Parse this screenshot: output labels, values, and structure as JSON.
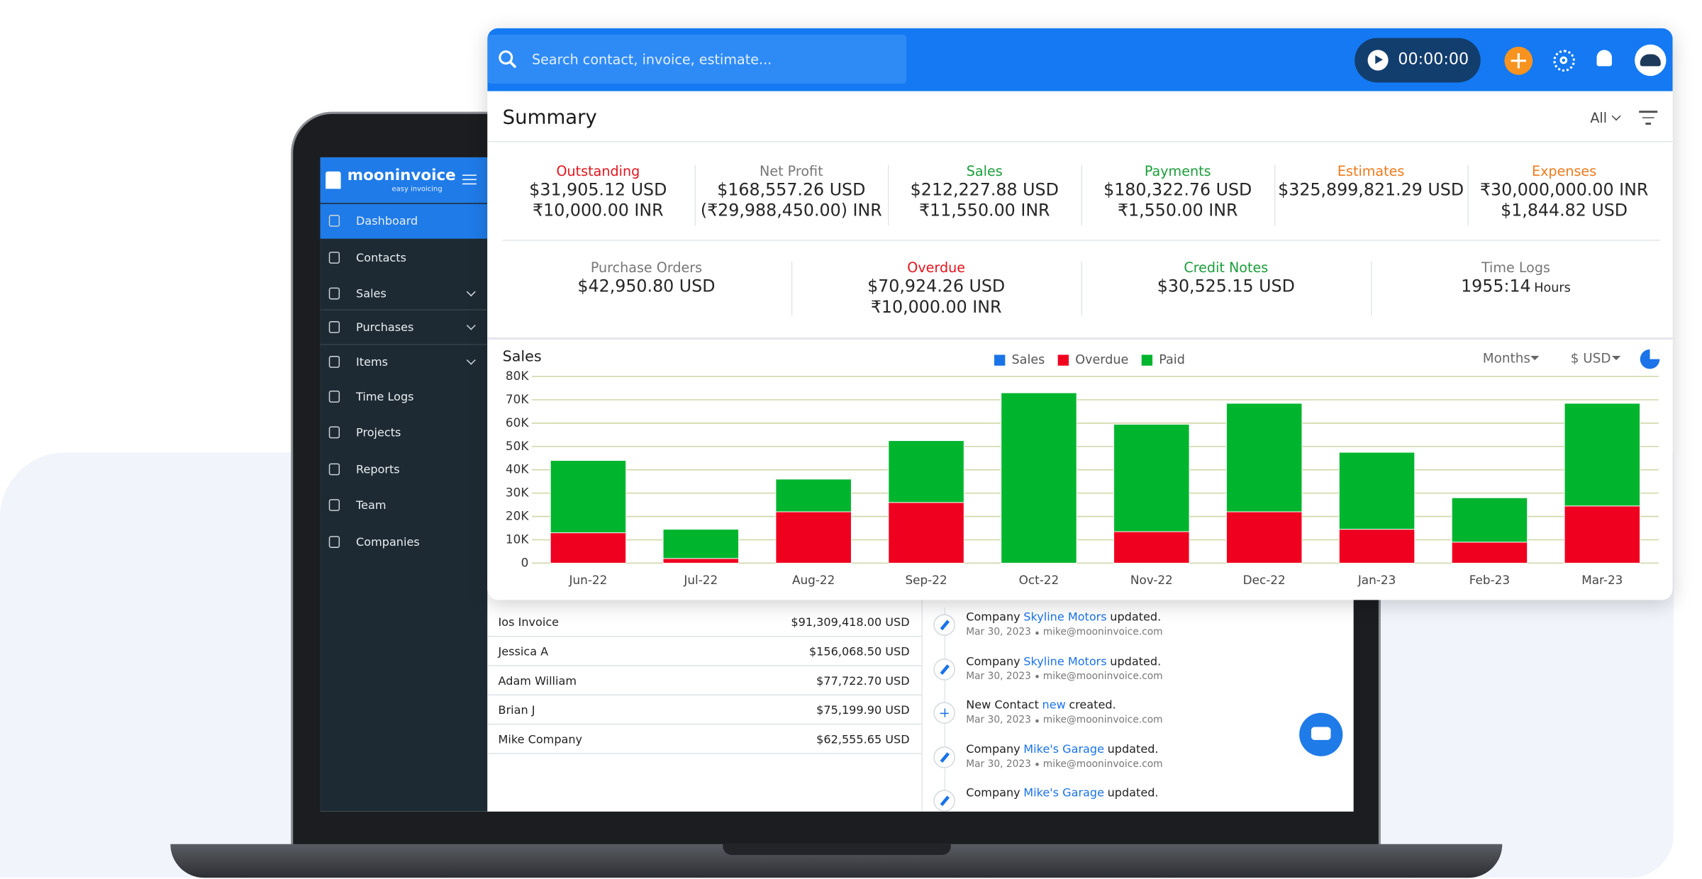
{
  "header": {
    "search_placeholder": "Search contact, invoice, estimate...",
    "timer": "00:00:00"
  },
  "sidebar": {
    "logo": "mooninvoice",
    "tagline": "easy invoicing",
    "items": [
      "Dashboard",
      "Contacts",
      "Sales",
      "Purchases",
      "Items",
      "Time Logs",
      "Projects",
      "Reports",
      "Team",
      "Companies"
    ]
  },
  "summary": {
    "title": "Summary",
    "filter": "All",
    "stats": [
      {
        "label": "Outstanding",
        "color": "#e3141e",
        "lines": [
          "$31,905.12 USD",
          "₹10,000.00 INR"
        ]
      },
      {
        "label": "Net Profit",
        "color": "#777777",
        "lines": [
          "$168,557.26 USD",
          "(₹29,988,450.00) INR"
        ]
      },
      {
        "label": "Sales",
        "color": "#1a9e3a",
        "lines": [
          "$212,227.88 USD",
          "₹11,550.00 INR"
        ]
      },
      {
        "label": "Payments",
        "color": "#1a9e3a",
        "lines": [
          "$180,322.76 USD",
          "₹1,550.00 INR"
        ]
      },
      {
        "label": "Estimates",
        "color": "#ee7a1c",
        "lines": [
          "$325,899,821.29 USD"
        ]
      },
      {
        "label": "Expenses",
        "color": "#ee7a1c",
        "lines": [
          "₹30,000,000.00 INR",
          "$1,844.82 USD"
        ]
      }
    ],
    "stats2": [
      {
        "label": "Purchase Orders",
        "color": "#777777",
        "lines": [
          "$42,950.80 USD"
        ]
      },
      {
        "label": "Overdue",
        "color": "#e3141e",
        "lines": [
          "$70,924.26 USD",
          "₹10,000.00 INR"
        ]
      },
      {
        "label": "Credit Notes",
        "color": "#1a9e3a",
        "lines": [
          "$30,525.15 USD"
        ]
      },
      {
        "label": "Time Logs",
        "color": "#777777",
        "lines": [
          "1955:14"
        ],
        "unit": "Hours"
      }
    ]
  },
  "chart_data": {
    "type": "bar",
    "stacked": true,
    "title": "Sales",
    "period": "Months",
    "currency": "$ USD",
    "categories": [
      "Jun-22",
      "Jul-22",
      "Aug-22",
      "Sep-22",
      "Oct-22",
      "Nov-22",
      "Dec-22",
      "Jan-23",
      "Feb-23",
      "Mar-23"
    ],
    "series": [
      {
        "name": "Sales",
        "color": "#1a73e8",
        "values": [
          null,
          null,
          null,
          null,
          null,
          null,
          null,
          null,
          null,
          null
        ]
      },
      {
        "name": "Overdue",
        "color": "#f0001f",
        "values": [
          13000,
          2000,
          22000,
          26000,
          0,
          13500,
          22000,
          14500,
          9000,
          24500
        ]
      },
      {
        "name": "Paid",
        "color": "#00b52e",
        "values": [
          31000,
          12500,
          14000,
          26500,
          73000,
          46000,
          46500,
          33000,
          19000,
          44000
        ]
      }
    ],
    "ylim": [
      0,
      80000
    ],
    "yticks": [
      0,
      {
        "value": 10000,
        "label": "10K"
      },
      {
        "value": 20000,
        "label": "20K"
      },
      {
        "value": 30000,
        "label": "30K"
      },
      {
        "value": 40000,
        "label": "40K"
      },
      {
        "value": 50000,
        "label": "50K"
      },
      {
        "value": 60000,
        "label": "60K"
      },
      {
        "value": 70000,
        "label": "70K"
      },
      {
        "value": 80000,
        "label": "80K"
      }
    ],
    "grid": true
  },
  "top_customers": {
    "rows": [
      [
        "Ios Invoice",
        "$91,309,418.00 USD"
      ],
      [
        "Jessica A",
        "$156,068.50 USD"
      ],
      [
        "Adam William",
        "$77,722.70 USD"
      ],
      [
        "Brian J",
        "$75,199.90 USD"
      ],
      [
        "Mike Company",
        "$62,555.65 USD"
      ]
    ]
  },
  "activity": [
    {
      "prefix": "Company",
      "link": "Skyline Motors",
      "suffix": "updated.",
      "date": "Mar 30, 2023",
      "email": "mike@mooninvoice.com",
      "icon": "edit"
    },
    {
      "prefix": "Company",
      "link": "Skyline Motors",
      "suffix": "updated.",
      "date": "Mar 30, 2023",
      "email": "mike@mooninvoice.com",
      "icon": "edit"
    },
    {
      "prefix": "New Contact",
      "link": "new",
      "suffix": "created.",
      "date": "Mar 30, 2023",
      "email": "mike@mooninvoice.com",
      "icon": "add"
    },
    {
      "prefix": "Company",
      "link": "Mike's Garage",
      "suffix": "updated.",
      "date": "Mar 30, 2023",
      "email": "mike@mooninvoice.com",
      "icon": "edit"
    },
    {
      "prefix": "Company",
      "link": "Mike's Garage",
      "suffix": "updated.",
      "email": null,
      "date": null,
      "icon": "edit"
    }
  ]
}
